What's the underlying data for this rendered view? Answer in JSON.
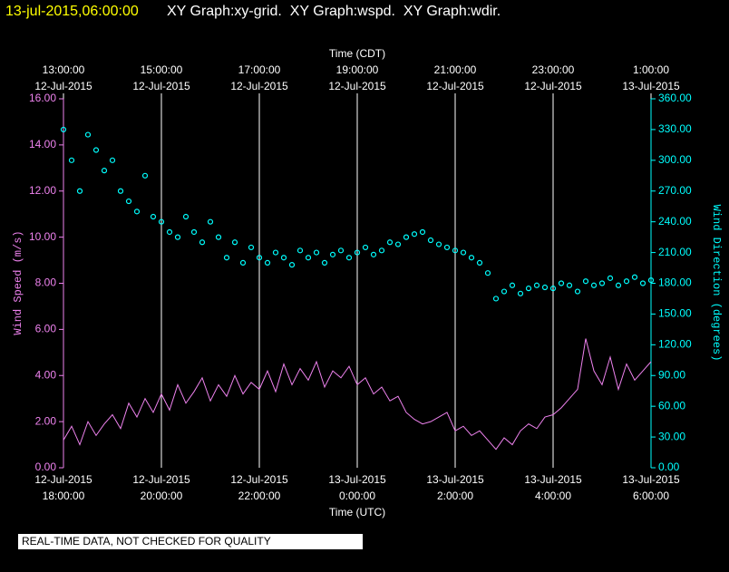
{
  "chart_data": {
    "type": "line",
    "header_time": "13-jul-2015,06:00:00",
    "title": "XY Graph:xy-grid.  XY Graph:wspd.  XY Graph:wdir.",
    "xlabel": "Time (UTC)",
    "x2label": "Time (CDT)",
    "ylabel": "Wind Speed (m/s)",
    "y2label": "Wind Direction (degrees)",
    "notice": "REAL-TIME DATA, NOT CHECKED FOR QUALITY",
    "xlim": [
      "2015-07-12T18:00:00",
      "2015-07-13T06:00:00"
    ],
    "xticks": [
      {
        "value": "2015-07-12T18:00:00",
        "label": "12-Jul-2015",
        "time": "18:00:00"
      },
      {
        "value": "2015-07-12T20:00:00",
        "label": "12-Jul-2015",
        "time": "20:00:00"
      },
      {
        "value": "2015-07-12T22:00:00",
        "label": "12-Jul-2015",
        "time": "22:00:00"
      },
      {
        "value": "2015-07-13T00:00:00",
        "label": "13-Jul-2015",
        "time": "0:00:00"
      },
      {
        "value": "2015-07-13T02:00:00",
        "label": "13-Jul-2015",
        "time": "2:00:00"
      },
      {
        "value": "2015-07-13T04:00:00",
        "label": "13-Jul-2015",
        "time": "4:00:00"
      },
      {
        "value": "2015-07-13T06:00:00",
        "label": "13-Jul-2015",
        "time": "6:00:00"
      }
    ],
    "x2ticks": [
      {
        "value": "2015-07-12T18:00:00",
        "label": "12-Jul-2015",
        "time": "13:00:00"
      },
      {
        "value": "2015-07-12T20:00:00",
        "label": "12-Jul-2015",
        "time": "15:00:00"
      },
      {
        "value": "2015-07-12T22:00:00",
        "label": "12-Jul-2015",
        "time": "17:00:00"
      },
      {
        "value": "2015-07-13T00:00:00",
        "label": "12-Jul-2015",
        "time": "19:00:00"
      },
      {
        "value": "2015-07-13T02:00:00",
        "label": "12-Jul-2015",
        "time": "21:00:00"
      },
      {
        "value": "2015-07-13T04:00:00",
        "label": "12-Jul-2015",
        "time": "23:00:00"
      },
      {
        "value": "2015-07-13T06:00:00",
        "label": "13-Jul-2015",
        "time": "1:00:00"
      }
    ],
    "ylim": [
      0,
      16
    ],
    "yticks": [
      {
        "value": 0,
        "label": "0.00"
      },
      {
        "value": 2,
        "label": "2.00"
      },
      {
        "value": 4,
        "label": "4.00"
      },
      {
        "value": 6,
        "label": "6.00"
      },
      {
        "value": 8,
        "label": "8.00"
      },
      {
        "value": 10,
        "label": "10.00"
      },
      {
        "value": 12,
        "label": "12.00"
      },
      {
        "value": 14,
        "label": "14.00"
      },
      {
        "value": 16,
        "label": "16.00"
      }
    ],
    "y2lim": [
      0,
      360
    ],
    "y2ticks": [
      {
        "value": 0,
        "label": "0.00"
      },
      {
        "value": 30,
        "label": "30.00"
      },
      {
        "value": 60,
        "label": "60.00"
      },
      {
        "value": 90,
        "label": "90.00"
      },
      {
        "value": 120,
        "label": "120.00"
      },
      {
        "value": 150,
        "label": "150.00"
      },
      {
        "value": 180,
        "label": "180.00"
      },
      {
        "value": 210,
        "label": "210.00"
      },
      {
        "value": 240,
        "label": "240.00"
      },
      {
        "value": 270,
        "label": "270.00"
      },
      {
        "value": 300,
        "label": "300.00"
      },
      {
        "value": 330,
        "label": "330.00"
      },
      {
        "value": 360,
        "label": "360.00"
      }
    ],
    "grid": true,
    "x": [
      "2015-07-12T18:00",
      "2015-07-12T18:10",
      "2015-07-12T18:20",
      "2015-07-12T18:30",
      "2015-07-12T18:40",
      "2015-07-12T18:50",
      "2015-07-12T19:00",
      "2015-07-12T19:10",
      "2015-07-12T19:20",
      "2015-07-12T19:30",
      "2015-07-12T19:40",
      "2015-07-12T19:50",
      "2015-07-12T20:00",
      "2015-07-12T20:10",
      "2015-07-12T20:20",
      "2015-07-12T20:30",
      "2015-07-12T20:40",
      "2015-07-12T20:50",
      "2015-07-12T21:00",
      "2015-07-12T21:10",
      "2015-07-12T21:20",
      "2015-07-12T21:30",
      "2015-07-12T21:40",
      "2015-07-12T21:50",
      "2015-07-12T22:00",
      "2015-07-12T22:10",
      "2015-07-12T22:20",
      "2015-07-12T22:30",
      "2015-07-12T22:40",
      "2015-07-12T22:50",
      "2015-07-12T23:00",
      "2015-07-12T23:10",
      "2015-07-12T23:20",
      "2015-07-12T23:30",
      "2015-07-12T23:40",
      "2015-07-12T23:50",
      "2015-07-13T00:00",
      "2015-07-13T00:10",
      "2015-07-13T00:20",
      "2015-07-13T00:30",
      "2015-07-13T00:40",
      "2015-07-13T00:50",
      "2015-07-13T01:00",
      "2015-07-13T01:10",
      "2015-07-13T01:20",
      "2015-07-13T01:30",
      "2015-07-13T01:40",
      "2015-07-13T01:50",
      "2015-07-13T02:00",
      "2015-07-13T02:10",
      "2015-07-13T02:20",
      "2015-07-13T02:30",
      "2015-07-13T02:40",
      "2015-07-13T02:50",
      "2015-07-13T03:00",
      "2015-07-13T03:10",
      "2015-07-13T03:20",
      "2015-07-13T03:30",
      "2015-07-13T03:40",
      "2015-07-13T03:50",
      "2015-07-13T04:00",
      "2015-07-13T04:10",
      "2015-07-13T04:20",
      "2015-07-13T04:30",
      "2015-07-13T04:40",
      "2015-07-13T04:50",
      "2015-07-13T05:00",
      "2015-07-13T05:10",
      "2015-07-13T05:20",
      "2015-07-13T05:30",
      "2015-07-13T05:40",
      "2015-07-13T05:50",
      "2015-07-13T06:00"
    ],
    "series": [
      {
        "name": "wspd",
        "color": "#ee82ee",
        "style": "line",
        "values": [
          1.2,
          1.8,
          1.0,
          2.0,
          1.4,
          1.9,
          2.3,
          1.7,
          2.8,
          2.2,
          3.0,
          2.4,
          3.2,
          2.5,
          3.6,
          2.8,
          3.3,
          3.9,
          2.9,
          3.6,
          3.1,
          4.0,
          3.2,
          3.7,
          3.4,
          4.2,
          3.3,
          4.5,
          3.6,
          4.3,
          3.8,
          4.6,
          3.5,
          4.2,
          3.9,
          4.4,
          3.6,
          3.9,
          3.2,
          3.5,
          2.9,
          3.1,
          2.4,
          2.1,
          1.9,
          2.0,
          2.2,
          2.4,
          1.6,
          1.8,
          1.4,
          1.6,
          1.2,
          0.8,
          1.3,
          1.0,
          1.6,
          1.9,
          1.7,
          2.2,
          2.3,
          2.6,
          3.0,
          3.4,
          5.6,
          4.2,
          3.6,
          4.8,
          3.4,
          4.5,
          3.8,
          4.2,
          4.6
        ]
      },
      {
        "name": "wdir",
        "color": "#00ffff",
        "style": "points",
        "axis": "y2",
        "values": [
          330,
          300,
          270,
          325,
          310,
          290,
          300,
          270,
          260,
          250,
          285,
          245,
          240,
          230,
          225,
          245,
          230,
          220,
          240,
          225,
          205,
          220,
          200,
          215,
          205,
          200,
          210,
          205,
          198,
          212,
          205,
          210,
          200,
          208,
          212,
          205,
          210,
          215,
          208,
          212,
          220,
          218,
          225,
          228,
          230,
          222,
          218,
          215,
          212,
          210,
          205,
          200,
          190,
          165,
          172,
          178,
          170,
          175,
          178,
          176,
          175,
          180,
          178,
          172,
          182,
          178,
          180,
          185,
          178,
          182,
          186,
          180,
          183
        ]
      }
    ]
  }
}
